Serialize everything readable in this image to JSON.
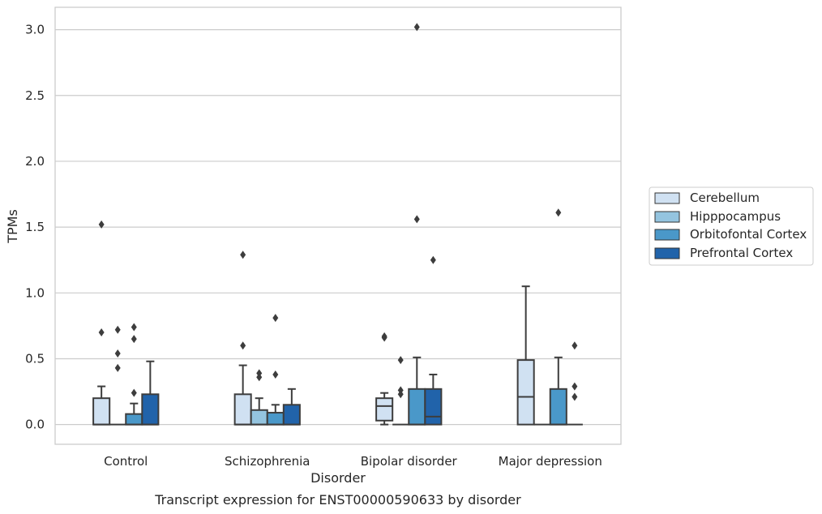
{
  "chart_data": {
    "type": "box",
    "caption": "Transcript expression for ENST00000590633 by disorder",
    "xlabel": "Disorder",
    "ylabel": "TPMs",
    "ylim": [
      -0.15,
      3.17
    ],
    "yticks": [
      0.0,
      0.5,
      1.0,
      1.5,
      2.0,
      2.5,
      3.0
    ],
    "ytick_labels": [
      "0.0",
      "0.5",
      "1.0",
      "1.5",
      "2.0",
      "2.5",
      "3.0"
    ],
    "grid": "horizontal",
    "legend_placement": "right",
    "categories": [
      "Control",
      "Schizophrenia",
      "Bipolar disorder",
      "Major depression"
    ],
    "series": [
      {
        "name": "Cerebellum",
        "color": "#d0e1f2",
        "boxes": [
          {
            "whislo": 0.0,
            "q1": 0.0,
            "med": 0.0,
            "q3": 0.2,
            "whishi": 0.29,
            "fliers": [
              1.52,
              0.7
            ]
          },
          {
            "whislo": 0.0,
            "q1": 0.0,
            "med": 0.0,
            "q3": 0.23,
            "whishi": 0.45,
            "fliers": [
              1.29,
              0.6
            ]
          },
          {
            "whislo": 0.0,
            "q1": 0.03,
            "med": 0.14,
            "q3": 0.2,
            "whishi": 0.24,
            "fliers": [
              0.67,
              0.66
            ]
          },
          {
            "whislo": 0.0,
            "q1": 0.0,
            "med": 0.21,
            "q3": 0.49,
            "whishi": 1.05,
            "fliers": []
          }
        ]
      },
      {
        "name": "Hipppocampus",
        "color": "#94c4df",
        "boxes": [
          {
            "whislo": 0.0,
            "q1": 0.0,
            "med": 0.0,
            "q3": 0.0,
            "whishi": 0.0,
            "fliers": [
              0.72,
              0.54,
              0.43
            ]
          },
          {
            "whislo": 0.0,
            "q1": 0.0,
            "med": 0.0,
            "q3": 0.11,
            "whishi": 0.2,
            "fliers": [
              0.39,
              0.36
            ]
          },
          {
            "whislo": 0.0,
            "q1": 0.0,
            "med": 0.0,
            "q3": 0.0,
            "whishi": 0.0,
            "fliers": [
              0.49,
              0.26,
              0.23
            ]
          },
          {
            "whislo": 0.0,
            "q1": 0.0,
            "med": 0.0,
            "q3": 0.0,
            "whishi": 0.0,
            "fliers": []
          }
        ]
      },
      {
        "name": "Orbitofontal Cortex",
        "color": "#4a98c9",
        "boxes": [
          {
            "whislo": 0.0,
            "q1": 0.0,
            "med": 0.0,
            "q3": 0.08,
            "whishi": 0.16,
            "fliers": [
              0.74,
              0.65,
              0.24
            ]
          },
          {
            "whislo": 0.0,
            "q1": 0.0,
            "med": 0.0,
            "q3": 0.09,
            "whishi": 0.15,
            "fliers": [
              0.81,
              0.38
            ]
          },
          {
            "whislo": 0.0,
            "q1": 0.0,
            "med": 0.0,
            "q3": 0.27,
            "whishi": 0.51,
            "fliers": [
              3.02,
              1.56
            ]
          },
          {
            "whislo": 0.0,
            "q1": 0.0,
            "med": 0.0,
            "q3": 0.27,
            "whishi": 0.51,
            "fliers": [
              1.61
            ]
          }
        ]
      },
      {
        "name": "Prefrontal Cortex",
        "color": "#2163aa",
        "boxes": [
          {
            "whislo": 0.0,
            "q1": 0.0,
            "med": 0.0,
            "q3": 0.23,
            "whishi": 0.48,
            "fliers": []
          },
          {
            "whislo": 0.0,
            "q1": 0.0,
            "med": 0.0,
            "q3": 0.15,
            "whishi": 0.27,
            "fliers": []
          },
          {
            "whislo": 0.0,
            "q1": 0.0,
            "med": 0.06,
            "q3": 0.27,
            "whishi": 0.38,
            "fliers": [
              1.25
            ]
          },
          {
            "whislo": 0.0,
            "q1": 0.0,
            "med": 0.0,
            "q3": 0.0,
            "whishi": 0.0,
            "fliers": [
              0.6,
              0.29,
              0.21
            ]
          }
        ]
      }
    ]
  }
}
